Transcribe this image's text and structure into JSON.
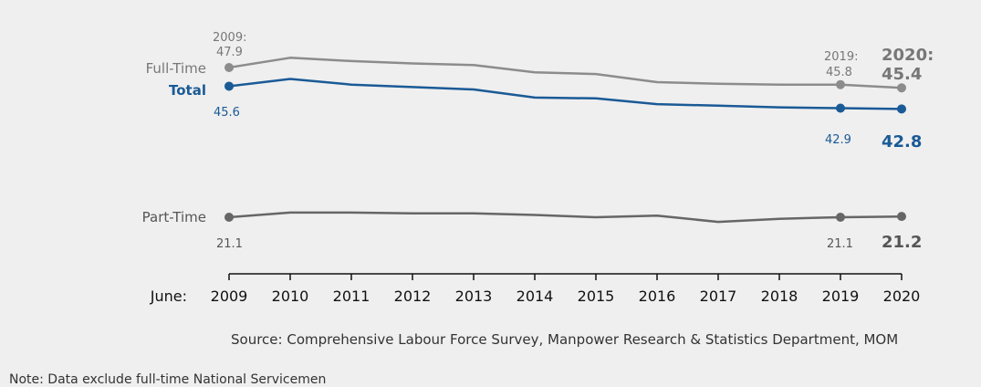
{
  "chart_data": {
    "type": "line",
    "categories": [
      "2009",
      "2010",
      "2011",
      "2012",
      "2013",
      "2014",
      "2015",
      "2016",
      "2017",
      "2018",
      "2019",
      "2020"
    ],
    "x_prefix": "June:",
    "series": [
      {
        "name": "Full-Time",
        "color": "#8c8c8c",
        "label_color": "#777777",
        "label_bold": false,
        "values": [
          47.9,
          49.1,
          48.7,
          48.4,
          48.2,
          47.3,
          47.1,
          46.1,
          45.9,
          45.8,
          45.8,
          45.4
        ]
      },
      {
        "name": "Total",
        "color": "#1a5a96",
        "label_color": "#1a5a96",
        "label_bold": true,
        "values": [
          45.6,
          46.5,
          45.8,
          45.5,
          45.2,
          44.2,
          44.1,
          43.4,
          43.2,
          43.0,
          42.9,
          42.8
        ]
      },
      {
        "name": "Part-Time",
        "color": "#666666",
        "label_color": "#555555",
        "label_bold": false,
        "values": [
          21.1,
          21.7,
          21.7,
          21.6,
          21.6,
          21.4,
          21.1,
          21.3,
          20.5,
          20.9,
          21.1,
          21.2
        ]
      }
    ],
    "annotations": {
      "ft_start_year": "2009:",
      "ft_start_value": "47.9",
      "ft_2019_year": "2019:",
      "ft_2019_value": "45.8",
      "ft_2020_year": "2020:",
      "ft_2020_value": "45.4",
      "total_start_value": "45.6",
      "total_2019_value": "42.9",
      "total_2020_value": "42.8",
      "pt_start_value": "21.1",
      "pt_2019_value": "21.1",
      "pt_2020_value": "21.2"
    },
    "source": "Source: Comprehensive Labour Force Survey, Manpower Research & Statistics Department, MOM",
    "note": "Note: Data exclude full-time National Servicemen"
  }
}
